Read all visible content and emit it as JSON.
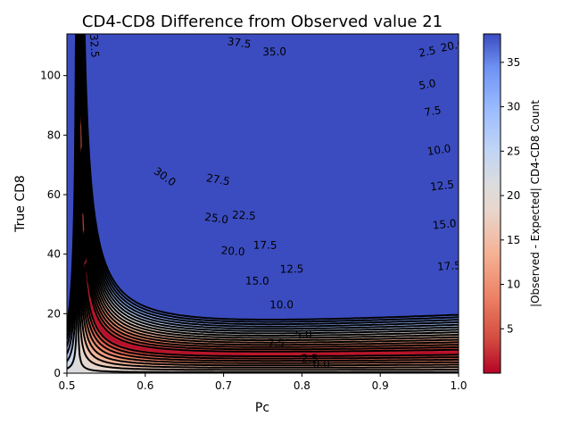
{
  "chart_data": {
    "type": "heatmap",
    "subtype": "filled-contour-with-line-contours",
    "title": "CD4-CD8 Difference from Observed value 21",
    "xlabel": "Pc",
    "ylabel": "True CD8",
    "colorbar_label": "|Observed - Expected| CD4-CD8 Count",
    "colormap": "coolwarm_r",
    "xlim": [
      0.5,
      1.0
    ],
    "ylim": [
      0,
      114
    ],
    "x_ticks": [
      0.5,
      0.6,
      0.7,
      0.8,
      0.9,
      1.0
    ],
    "x_tick_labels": [
      "0.5",
      "0.6",
      "0.7",
      "0.8",
      "0.9",
      "1.0"
    ],
    "y_ticks": [
      0,
      20,
      40,
      60,
      80,
      100
    ],
    "y_tick_labels": [
      "0",
      "20",
      "40",
      "60",
      "80",
      "100"
    ],
    "colorbar_range": [
      0,
      38.2
    ],
    "colorbar_ticks": [
      5,
      10,
      15,
      20,
      25,
      30,
      35
    ],
    "colorbar_tick_labels": [
      "5",
      "10",
      "15",
      "20",
      "25",
      "30",
      "35"
    ],
    "contour_levels": [
      2.5,
      5.0,
      7.5,
      10.0,
      12.5,
      15.0,
      17.5,
      20.0,
      22.5,
      25.0,
      27.5,
      30.0,
      32.5,
      35.0,
      37.5
    ],
    "contour_labels": [
      {
        "text": "37.5",
        "x": 0.72,
        "y": 111
      },
      {
        "text": "35.0",
        "x": 0.765,
        "y": 108
      },
      {
        "text": "32.5",
        "x": 0.535,
        "y": 110
      },
      {
        "text": "30.0",
        "x": 0.625,
        "y": 66
      },
      {
        "text": "27.5",
        "x": 0.693,
        "y": 65
      },
      {
        "text": "25.0",
        "x": 0.691,
        "y": 52
      },
      {
        "text": "22.5",
        "x": 0.726,
        "y": 53
      },
      {
        "text": "20.0",
        "x": 0.712,
        "y": 41
      },
      {
        "text": "17.5",
        "x": 0.753,
        "y": 43
      },
      {
        "text": "15.0",
        "x": 0.743,
        "y": 31
      },
      {
        "text": "12.5",
        "x": 0.787,
        "y": 35
      },
      {
        "text": "10.0",
        "x": 0.774,
        "y": 23
      },
      {
        "text": "7.5",
        "x": 0.767,
        "y": 10
      },
      {
        "text": "5.0",
        "x": 0.802,
        "y": 13
      },
      {
        "text": "2.5",
        "x": 0.81,
        "y": 5
      },
      {
        "text": "0.0",
        "x": 0.825,
        "y": 3
      },
      {
        "text": "2.5",
        "x": 0.96,
        "y": 108
      },
      {
        "text": "5.0",
        "x": 0.96,
        "y": 97
      },
      {
        "text": "7.5",
        "x": 0.967,
        "y": 88
      },
      {
        "text": "10.0",
        "x": 0.975,
        "y": 75
      },
      {
        "text": "12.5",
        "x": 0.979,
        "y": 63
      },
      {
        "text": "15.0",
        "x": 0.982,
        "y": 50
      },
      {
        "text": "17.5",
        "x": 0.988,
        "y": 36
      },
      {
        "text": "20.0",
        "x": 0.992,
        "y": 110
      }
    ]
  }
}
